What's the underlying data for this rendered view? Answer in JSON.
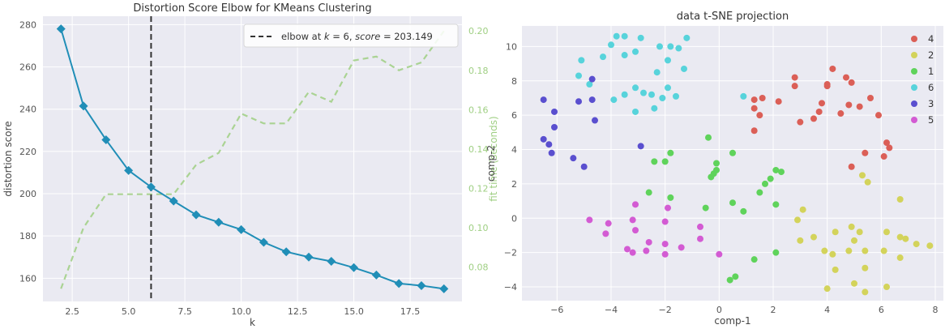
{
  "colors": {
    "distortion": "#208eb7",
    "fit_time": "#9fcf83",
    "elbow": "#333333",
    "cluster_4": "#db5f57",
    "cluster_2": "#d3d35b",
    "cluster_1": "#5fd35b",
    "cluster_6": "#57d3db",
    "cluster_3": "#5a4fcf",
    "cluster_5": "#d35bd3"
  },
  "chart_data": [
    {
      "type": "line",
      "title": "Distortion Score Elbow for KMeans Clustering",
      "xlabel": "k",
      "ylabel": "distortion score",
      "y2label": "fit time (seconds)",
      "xlim": [
        1.2,
        19.8
      ],
      "ylim": [
        149,
        284
      ],
      "y2lim": [
        0.0625,
        0.2075
      ],
      "x_ticks": [
        2.5,
        5.0,
        7.5,
        10.0,
        12.5,
        15.0,
        17.5
      ],
      "x_tick_labels": [
        "2.5",
        "5.0",
        "7.5",
        "10.0",
        "12.5",
        "15.0",
        "17.5"
      ],
      "y_ticks": [
        160,
        180,
        200,
        220,
        240,
        260,
        280
      ],
      "y_tick_labels": [
        "160",
        "180",
        "200",
        "220",
        "240",
        "260",
        "280"
      ],
      "y2_ticks": [
        0.08,
        0.1,
        0.12,
        0.14,
        0.16,
        0.18,
        0.2
      ],
      "y2_tick_labels": [
        "0.08",
        "0.10",
        "0.12",
        "0.14",
        "0.16",
        "0.18",
        "0.20"
      ],
      "x": [
        2,
        3,
        4,
        5,
        6,
        7,
        8,
        9,
        10,
        11,
        12,
        13,
        14,
        15,
        16,
        17,
        18,
        19
      ],
      "series": [
        {
          "values": [
            278,
            241.5,
            225.5,
            211,
            203.149,
            196.5,
            190,
            186.5,
            183,
            177,
            172.5,
            170,
            168,
            165,
            161.5,
            157.5,
            156.5,
            155
          ],
          "axis": "left",
          "style": "solid",
          "marker": "diamond"
        },
        {
          "values": [
            0.069,
            0.1,
            0.117,
            0.117,
            0.117,
            0.117,
            0.132,
            0.138,
            0.158,
            0.153,
            0.153,
            0.169,
            0.164,
            0.185,
            0.187,
            0.18,
            0.184,
            0.2
          ],
          "axis": "right",
          "style": "dashed"
        }
      ],
      "elbow": {
        "k": 6,
        "legend_label": "elbow at k = 6, score = 203.149",
        "legend_prefix": "elbow at ",
        "legend_k_symbol": "k",
        "legend_k_rest": " = 6, ",
        "legend_score_symbol": "score",
        "legend_score_rest": " = 203.149"
      },
      "legend_position": "top-right",
      "grid": true
    },
    {
      "type": "scatter",
      "title": "data t-SNE projection",
      "xlabel": "comp-1",
      "ylabel": "comp-2",
      "xlim": [
        -7.3,
        8.3
      ],
      "ylim": [
        -4.8,
        11.2
      ],
      "x_ticks": [
        -6,
        -4,
        -2,
        0,
        2,
        4,
        6,
        8
      ],
      "x_tick_labels": [
        "−6",
        "−4",
        "−2",
        "0",
        "2",
        "4",
        "6",
        "8"
      ],
      "y_ticks": [
        -4,
        -2,
        0,
        2,
        4,
        6,
        8,
        10
      ],
      "y_tick_labels": [
        "−4",
        "−2",
        "0",
        "2",
        "4",
        "6",
        "8",
        "10"
      ],
      "legend_position": "top-right",
      "grid": true,
      "legend_order": [
        "4",
        "2",
        "1",
        "6",
        "3",
        "5"
      ],
      "series": [
        {
          "name": "4",
          "color_key": "cluster_4",
          "points": [
            [
              1.6,
              7.0
            ],
            [
              2.2,
              6.8
            ],
            [
              2.8,
              8.2
            ],
            [
              2.8,
              7.7
            ],
            [
              4.2,
              8.7
            ],
            [
              4.7,
              8.2
            ],
            [
              4.9,
              7.9
            ],
            [
              5.6,
              7.0
            ],
            [
              1.3,
              6.9
            ],
            [
              1.3,
              6.4
            ],
            [
              1.5,
              6.0
            ],
            [
              1.3,
              5.1
            ],
            [
              3.0,
              5.6
            ],
            [
              3.5,
              5.8
            ],
            [
              3.7,
              6.2
            ],
            [
              3.8,
              6.7
            ],
            [
              4.0,
              7.7
            ],
            [
              4.0,
              7.8
            ],
            [
              4.5,
              6.1
            ],
            [
              4.8,
              6.6
            ],
            [
              5.2,
              6.5
            ],
            [
              5.9,
              6.0
            ],
            [
              6.2,
              4.4
            ],
            [
              6.3,
              4.1
            ],
            [
              5.4,
              3.8
            ],
            [
              6.1,
              3.6
            ],
            [
              4.9,
              3.0
            ]
          ]
        },
        {
          "name": "2",
          "color_key": "cluster_2",
          "points": [
            [
              5.3,
              2.5
            ],
            [
              5.5,
              2.1
            ],
            [
              6.7,
              1.1
            ],
            [
              2.9,
              -0.1
            ],
            [
              3.1,
              0.5
            ],
            [
              3.0,
              -1.3
            ],
            [
              3.5,
              -1.1
            ],
            [
              3.9,
              -1.9
            ],
            [
              4.3,
              -0.8
            ],
            [
              4.9,
              -0.5
            ],
            [
              5.0,
              -1.3
            ],
            [
              5.4,
              -1.9
            ],
            [
              5.2,
              -0.8
            ],
            [
              6.2,
              -0.8
            ],
            [
              6.7,
              -1.1
            ],
            [
              6.9,
              -1.2
            ],
            [
              6.1,
              -1.9
            ],
            [
              7.3,
              -1.5
            ],
            [
              7.8,
              -1.6
            ],
            [
              6.7,
              -2.3
            ],
            [
              4.2,
              -2.1
            ],
            [
              4.8,
              -1.9
            ],
            [
              4.3,
              -3.0
            ],
            [
              5.4,
              -2.9
            ],
            [
              4.0,
              -4.1
            ],
            [
              5.0,
              -3.8
            ],
            [
              5.4,
              -4.3
            ],
            [
              6.2,
              -4.0
            ]
          ]
        },
        {
          "name": "1",
          "color_key": "cluster_1",
          "points": [
            [
              -0.4,
              4.7
            ],
            [
              0.5,
              3.8
            ],
            [
              -1.8,
              3.8
            ],
            [
              -2.0,
              3.3
            ],
            [
              -2.4,
              3.3
            ],
            [
              -0.3,
              2.4
            ],
            [
              -0.2,
              2.6
            ],
            [
              -0.1,
              2.8
            ],
            [
              -0.1,
              3.2
            ],
            [
              1.9,
              2.3
            ],
            [
              2.1,
              2.8
            ],
            [
              2.3,
              2.7
            ],
            [
              1.7,
              2.0
            ],
            [
              1.5,
              1.5
            ],
            [
              -2.6,
              1.5
            ],
            [
              -1.8,
              1.2
            ],
            [
              0.5,
              0.9
            ],
            [
              0.9,
              0.4
            ],
            [
              2.1,
              0.8
            ],
            [
              -0.5,
              0.6
            ],
            [
              1.3,
              -2.4
            ],
            [
              2.1,
              -2.0
            ],
            [
              0.6,
              -3.4
            ],
            [
              0.4,
              -3.6
            ]
          ]
        },
        {
          "name": "6",
          "color_key": "cluster_6",
          "points": [
            [
              -4.0,
              10.1
            ],
            [
              -3.8,
              10.6
            ],
            [
              -3.5,
              10.6
            ],
            [
              -2.9,
              10.5
            ],
            [
              -1.2,
              10.5
            ],
            [
              -2.2,
              10.0
            ],
            [
              -1.9,
              9.2
            ],
            [
              -1.8,
              10.0
            ],
            [
              -1.5,
              9.9
            ],
            [
              -3.1,
              9.7
            ],
            [
              -3.5,
              9.5
            ],
            [
              -4.3,
              9.4
            ],
            [
              -5.1,
              9.2
            ],
            [
              -5.2,
              8.3
            ],
            [
              -4.8,
              7.8
            ],
            [
              -2.3,
              8.5
            ],
            [
              -1.3,
              8.7
            ],
            [
              -3.1,
              7.6
            ],
            [
              -1.9,
              7.6
            ],
            [
              -2.8,
              7.3
            ],
            [
              -2.5,
              7.2
            ],
            [
              -2.1,
              7.0
            ],
            [
              -1.6,
              7.1
            ],
            [
              -3.5,
              7.2
            ],
            [
              -3.9,
              6.9
            ],
            [
              -3.1,
              6.2
            ],
            [
              -2.4,
              6.4
            ],
            [
              0.9,
              7.1
            ]
          ]
        },
        {
          "name": "3",
          "color_key": "cluster_3",
          "points": [
            [
              -6.5,
              6.9
            ],
            [
              -4.7,
              8.1
            ],
            [
              -5.2,
              6.8
            ],
            [
              -4.7,
              6.9
            ],
            [
              -6.1,
              6.2
            ],
            [
              -6.1,
              5.3
            ],
            [
              -4.6,
              5.7
            ],
            [
              -6.5,
              4.6
            ],
            [
              -6.3,
              4.3
            ],
            [
              -6.2,
              3.8
            ],
            [
              -5.4,
              3.5
            ],
            [
              -2.9,
              4.2
            ],
            [
              -5.0,
              3.0
            ]
          ]
        },
        {
          "name": "5",
          "color_key": "cluster_5",
          "points": [
            [
              -3.1,
              0.8
            ],
            [
              -1.9,
              0.6
            ],
            [
              -0.7,
              -0.5
            ],
            [
              -4.8,
              -0.1
            ],
            [
              -4.1,
              -0.3
            ],
            [
              -3.2,
              -0.1
            ],
            [
              -2.0,
              -0.2
            ],
            [
              -4.2,
              -0.9
            ],
            [
              -3.1,
              -0.7
            ],
            [
              -2.6,
              -1.4
            ],
            [
              -2.0,
              -1.5
            ],
            [
              -3.4,
              -1.8
            ],
            [
              -1.4,
              -1.7
            ],
            [
              -0.7,
              -1.2
            ],
            [
              -3.2,
              -2.0
            ],
            [
              -2.7,
              -1.9
            ],
            [
              -2.0,
              -2.1
            ],
            [
              0.0,
              -2.1
            ]
          ]
        }
      ]
    }
  ]
}
